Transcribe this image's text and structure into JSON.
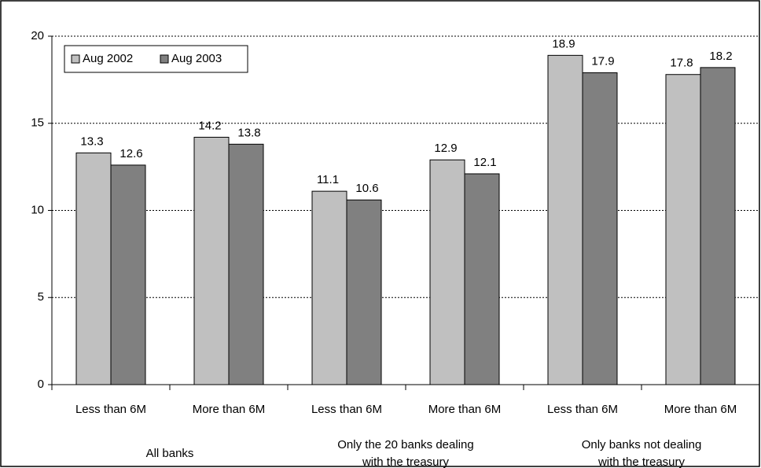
{
  "chart_data": {
    "type": "bar",
    "categories": [
      "Less than 6M",
      "More than 6M",
      "Less than 6M",
      "More than 6M",
      "Less than 6M",
      "More than 6M"
    ],
    "groups": [
      [
        "All banks"
      ],
      [
        "Only the 20 banks dealing",
        "with the treasury"
      ],
      [
        "Only banks not dealing",
        "with the treasury"
      ]
    ],
    "series": [
      {
        "name": "Aug 2002",
        "color": "#c0c0c0",
        "values": [
          13.3,
          14.2,
          11.1,
          12.9,
          18.9,
          17.8
        ]
      },
      {
        "name": "Aug 2003",
        "color": "#808080",
        "values": [
          12.6,
          13.8,
          10.6,
          12.1,
          17.9,
          18.2
        ]
      }
    ],
    "ylim": [
      0,
      20
    ],
    "yticks": [
      0,
      5,
      10,
      15,
      20
    ],
    "grid": true,
    "legend": "top-left"
  }
}
